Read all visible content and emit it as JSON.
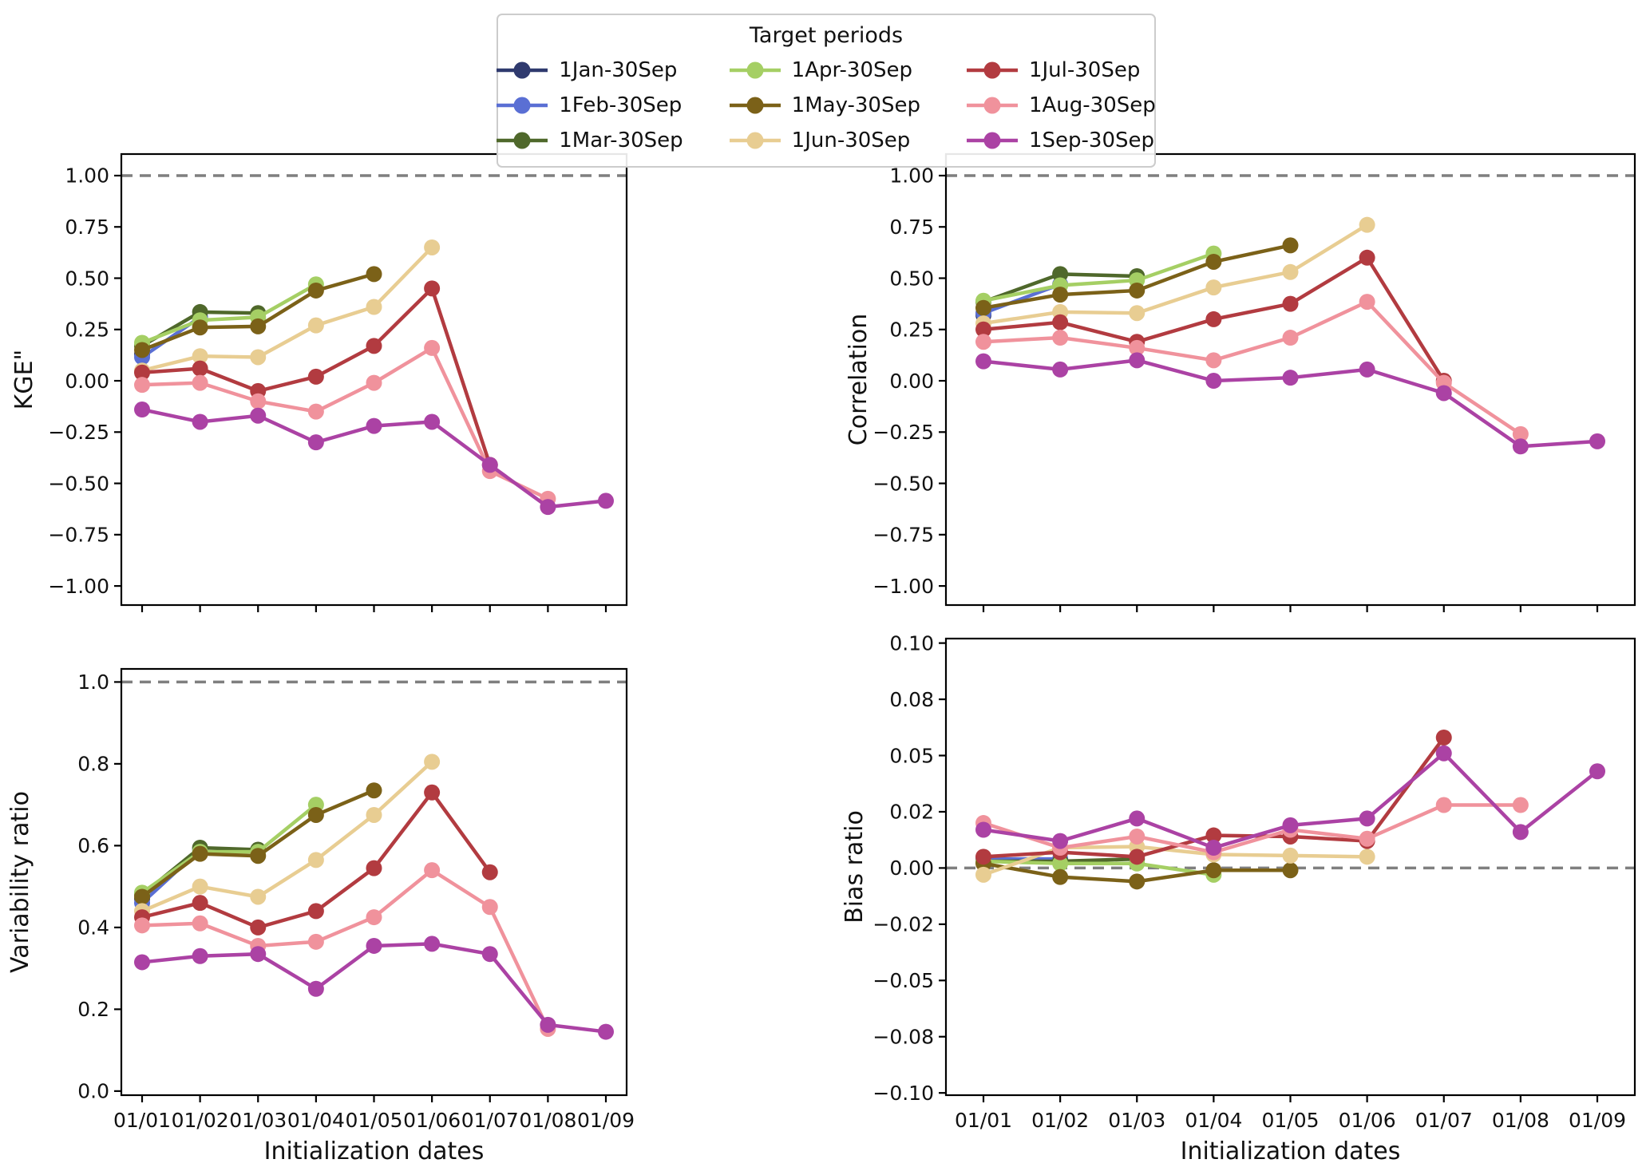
{
  "legend": {
    "title": "Target periods",
    "items": [
      "1Jan-30Sep",
      "1Feb-30Sep",
      "1Mar-30Sep",
      "1Apr-30Sep",
      "1May-30Sep",
      "1Jun-30Sep",
      "1Jul-30Sep",
      "1Aug-30Sep",
      "1Sep-30Sep"
    ]
  },
  "palette": {
    "1Jan-30Sep": "#2f3a6e",
    "1Feb-30Sep": "#5a6fd4",
    "1Mar-30Sep": "#4f682b",
    "1Apr-30Sep": "#a5cf64",
    "1May-30Sep": "#7b6118",
    "1Jun-30Sep": "#e8cd92",
    "1Jul-30Sep": "#b23b40",
    "1Aug-30Sep": "#f0929c",
    "1Sep-30Sep": "#ab42a4"
  },
  "style": {
    "reference_line_color": "#7f7f7f",
    "spine_color": "#000000",
    "background": "#ffffff"
  },
  "x_axis": {
    "label": "Initialization dates",
    "categories": [
      "01/01",
      "01/02",
      "01/03",
      "01/04",
      "01/05",
      "01/06",
      "01/07",
      "01/08",
      "01/09"
    ]
  },
  "chart_data": [
    {
      "type": "line",
      "panel": "kge",
      "ylabel": "KGE\"",
      "ylim": [
        -1.093,
        1.105
      ],
      "reference_line": 1.0,
      "legend_position": "top-center (shared)",
      "grid": false,
      "yticks": [
        {
          "value": 1.0,
          "label": "1.00"
        },
        {
          "value": 0.75,
          "label": "0.75"
        },
        {
          "value": 0.5,
          "label": "0.50"
        },
        {
          "value": 0.25,
          "label": "0.25"
        },
        {
          "value": 0.0,
          "label": "0.00"
        },
        {
          "value": -0.25,
          "label": "−0.25"
        },
        {
          "value": -0.5,
          "label": "−0.50"
        },
        {
          "value": -0.75,
          "label": "−0.75"
        },
        {
          "value": -1.0,
          "label": "−1.00"
        }
      ],
      "series": [
        {
          "name": "1Jan-30Sep",
          "values": [
            0.13,
            null,
            null,
            null,
            null,
            null,
            null,
            null,
            null
          ]
        },
        {
          "name": "1Feb-30Sep",
          "values": [
            0.115,
            0.31,
            null,
            null,
            null,
            null,
            null,
            null,
            null
          ]
        },
        {
          "name": "1Mar-30Sep",
          "values": [
            0.17,
            0.335,
            0.33,
            null,
            null,
            null,
            null,
            null,
            null
          ]
        },
        {
          "name": "1Apr-30Sep",
          "values": [
            0.185,
            0.295,
            0.31,
            0.47,
            null,
            null,
            null,
            null,
            null
          ]
        },
        {
          "name": "1May-30Sep",
          "values": [
            0.15,
            0.26,
            0.265,
            0.44,
            0.52,
            null,
            null,
            null,
            null
          ]
        },
        {
          "name": "1Jun-30Sep",
          "values": [
            0.05,
            0.12,
            0.115,
            0.27,
            0.36,
            0.65,
            null,
            null,
            null
          ]
        },
        {
          "name": "1Jul-30Sep",
          "values": [
            0.04,
            0.06,
            -0.05,
            0.02,
            0.17,
            0.45,
            -0.41,
            null,
            null
          ]
        },
        {
          "name": "1Aug-30Sep",
          "values": [
            -0.02,
            -0.01,
            -0.1,
            -0.15,
            -0.01,
            0.16,
            -0.44,
            -0.575,
            null
          ]
        },
        {
          "name": "1Sep-30Sep",
          "values": [
            -0.14,
            -0.2,
            -0.17,
            -0.3,
            -0.22,
            -0.2,
            -0.41,
            -0.615,
            -0.585
          ]
        }
      ]
    },
    {
      "type": "line",
      "panel": "correlation",
      "ylabel": "Correlation",
      "ylim": [
        -1.093,
        1.105
      ],
      "reference_line": 1.0,
      "grid": false,
      "yticks": [
        {
          "value": 1.0,
          "label": "1.00"
        },
        {
          "value": 0.75,
          "label": "0.75"
        },
        {
          "value": 0.5,
          "label": "0.50"
        },
        {
          "value": 0.25,
          "label": "0.25"
        },
        {
          "value": 0.0,
          "label": "0.00"
        },
        {
          "value": -0.25,
          "label": "−0.25"
        },
        {
          "value": -0.5,
          "label": "−0.50"
        },
        {
          "value": -0.75,
          "label": "−0.75"
        },
        {
          "value": -1.0,
          "label": "−1.00"
        }
      ],
      "series": [
        {
          "name": "1Jan-30Sep",
          "values": [
            0.32,
            null,
            null,
            null,
            null,
            null,
            null,
            null,
            null
          ]
        },
        {
          "name": "1Feb-30Sep",
          "values": [
            0.33,
            0.47,
            null,
            null,
            null,
            null,
            null,
            null,
            null
          ]
        },
        {
          "name": "1Mar-30Sep",
          "values": [
            0.385,
            0.52,
            0.51,
            null,
            null,
            null,
            null,
            null,
            null
          ]
        },
        {
          "name": "1Apr-30Sep",
          "values": [
            0.39,
            0.465,
            0.49,
            0.62,
            null,
            null,
            null,
            null,
            null
          ]
        },
        {
          "name": "1May-30Sep",
          "values": [
            0.355,
            0.42,
            0.44,
            0.58,
            0.66,
            null,
            null,
            null,
            null
          ]
        },
        {
          "name": "1Jun-30Sep",
          "values": [
            0.28,
            0.335,
            0.33,
            0.455,
            0.53,
            0.76,
            null,
            null,
            null
          ]
        },
        {
          "name": "1Jul-30Sep",
          "values": [
            0.25,
            0.285,
            0.19,
            0.3,
            0.375,
            0.6,
            0.0,
            null,
            null
          ]
        },
        {
          "name": "1Aug-30Sep",
          "values": [
            0.19,
            0.21,
            0.16,
            0.1,
            0.21,
            0.385,
            -0.01,
            -0.26,
            null
          ]
        },
        {
          "name": "1Sep-30Sep",
          "values": [
            0.095,
            0.055,
            0.1,
            0.0,
            0.015,
            0.055,
            -0.06,
            -0.32,
            -0.295
          ]
        }
      ]
    },
    {
      "type": "line",
      "panel": "variability-ratio",
      "ylabel": "Variability ratio",
      "ylim": [
        -0.01,
        1.032
      ],
      "reference_line": 1.0,
      "grid": false,
      "yticks": [
        {
          "value": 1.0,
          "label": "1.0"
        },
        {
          "value": 0.8,
          "label": "0.8"
        },
        {
          "value": 0.6,
          "label": "0.6"
        },
        {
          "value": 0.4,
          "label": "0.4"
        },
        {
          "value": 0.2,
          "label": "0.2"
        },
        {
          "value": 0.0,
          "label": "0.0"
        }
      ],
      "series": [
        {
          "name": "1Jan-30Sep",
          "values": [
            0.47,
            null,
            null,
            null,
            null,
            null,
            null,
            null,
            null
          ]
        },
        {
          "name": "1Feb-30Sep",
          "values": [
            0.46,
            0.59,
            null,
            null,
            null,
            null,
            null,
            null,
            null
          ]
        },
        {
          "name": "1Mar-30Sep",
          "values": [
            0.48,
            0.595,
            0.59,
            null,
            null,
            null,
            null,
            null,
            null
          ]
        },
        {
          "name": "1Apr-30Sep",
          "values": [
            0.485,
            0.585,
            0.585,
            0.7,
            null,
            null,
            null,
            null,
            null
          ]
        },
        {
          "name": "1May-30Sep",
          "values": [
            0.475,
            0.58,
            0.575,
            0.675,
            0.735,
            null,
            null,
            null,
            null
          ]
        },
        {
          "name": "1Jun-30Sep",
          "values": [
            0.44,
            0.5,
            0.475,
            0.565,
            0.675,
            0.805,
            null,
            null,
            null
          ]
        },
        {
          "name": "1Jul-30Sep",
          "values": [
            0.425,
            0.46,
            0.4,
            0.44,
            0.545,
            0.73,
            0.535,
            null,
            null
          ]
        },
        {
          "name": "1Aug-30Sep",
          "values": [
            0.405,
            0.41,
            0.355,
            0.365,
            0.425,
            0.54,
            0.45,
            0.152,
            null
          ]
        },
        {
          "name": "1Sep-30Sep",
          "values": [
            0.315,
            0.33,
            0.335,
            0.25,
            0.355,
            0.36,
            0.335,
            0.162,
            0.145
          ]
        }
      ]
    },
    {
      "type": "line",
      "panel": "bias-ratio",
      "ylabel": "Bias ratio",
      "ylim": [
        -0.101,
        0.102
      ],
      "reference_line": 0.0,
      "grid": false,
      "yticks": [
        {
          "value": 0.1,
          "label": "0.10"
        },
        {
          "value": 0.075,
          "label": "0.08"
        },
        {
          "value": 0.05,
          "label": "0.05"
        },
        {
          "value": 0.025,
          "label": "0.02"
        },
        {
          "value": 0.0,
          "label": "0.00"
        },
        {
          "value": -0.025,
          "label": "−0.02"
        },
        {
          "value": -0.05,
          "label": "−0.05"
        },
        {
          "value": -0.075,
          "label": "−0.08"
        },
        {
          "value": -0.1,
          "label": "−0.10"
        }
      ],
      "series": [
        {
          "name": "1Jan-30Sep",
          "values": [
            0.004,
            null,
            null,
            null,
            null,
            null,
            null,
            null,
            null
          ]
        },
        {
          "name": "1Feb-30Sep",
          "values": [
            0.004,
            0.004,
            null,
            null,
            null,
            null,
            null,
            null,
            null
          ]
        },
        {
          "name": "1Mar-30Sep",
          "values": [
            0.003,
            0.003,
            0.004,
            null,
            null,
            null,
            null,
            null,
            null
          ]
        },
        {
          "name": "1Apr-30Sep",
          "values": [
            0.003,
            0.002,
            0.002,
            -0.003,
            null,
            null,
            null,
            null,
            null
          ]
        },
        {
          "name": "1May-30Sep",
          "values": [
            0.002,
            -0.004,
            -0.006,
            -0.001,
            -0.001,
            null,
            null,
            null,
            null
          ]
        },
        {
          "name": "1Jun-30Sep",
          "values": [
            -0.003,
            0.009,
            0.0095,
            0.006,
            0.0055,
            0.005,
            null,
            null,
            null
          ]
        },
        {
          "name": "1Jul-30Sep",
          "values": [
            0.005,
            0.007,
            0.005,
            0.0145,
            0.014,
            0.012,
            0.058,
            null,
            null
          ]
        },
        {
          "name": "1Aug-30Sep",
          "values": [
            0.02,
            0.009,
            0.014,
            0.007,
            0.017,
            0.013,
            0.028,
            0.028,
            null
          ]
        },
        {
          "name": "1Sep-30Sep",
          "values": [
            0.017,
            0.012,
            0.022,
            0.009,
            0.019,
            0.022,
            0.051,
            0.016,
            0.043
          ]
        }
      ]
    }
  ]
}
